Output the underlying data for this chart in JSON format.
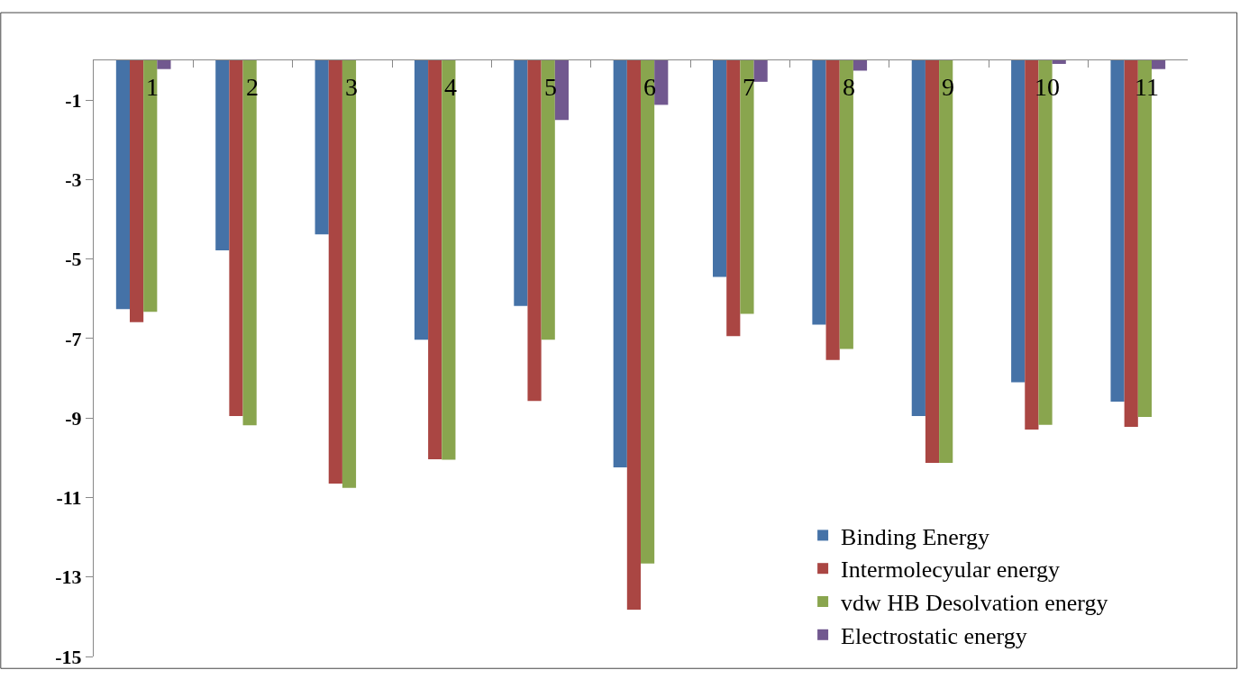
{
  "chart_data": {
    "type": "bar",
    "categories": [
      "1",
      "2",
      "3",
      "4",
      "5",
      "6",
      "7",
      "8",
      "9",
      "10",
      "11"
    ],
    "series": [
      {
        "name": "Binding Energy",
        "color": "#4572a7",
        "values": [
          -6.26,
          -4.78,
          -4.38,
          -7.03,
          -6.18,
          -10.24,
          -5.45,
          -6.65,
          -8.95,
          -8.1,
          -8.59
        ]
      },
      {
        "name": "Intermolecyular energy",
        "color": "#aa4643",
        "values": [
          -6.59,
          -8.95,
          -10.65,
          -10.04,
          -8.57,
          -13.82,
          -6.94,
          -7.54,
          -10.13,
          -9.29,
          -9.22
        ]
      },
      {
        "name": "vdw HB Desolvation energy",
        "color": "#89a54e",
        "values": [
          -6.33,
          -9.18,
          -10.76,
          -10.05,
          -7.03,
          -12.66,
          -6.38,
          -7.26,
          -10.13,
          -9.17,
          -8.97
        ]
      },
      {
        "name": "Electrostatic energy",
        "color": "#71588f",
        "values": [
          -0.22,
          null,
          null,
          null,
          -1.5,
          -1.12,
          -0.54,
          -0.26,
          null,
          -0.09,
          -0.22
        ]
      }
    ],
    "ylim": [
      -15,
      0
    ],
    "yticks": [
      -1,
      -3,
      -5,
      -7,
      -9,
      -11,
      -13,
      -15
    ],
    "legend": "bottom right"
  }
}
